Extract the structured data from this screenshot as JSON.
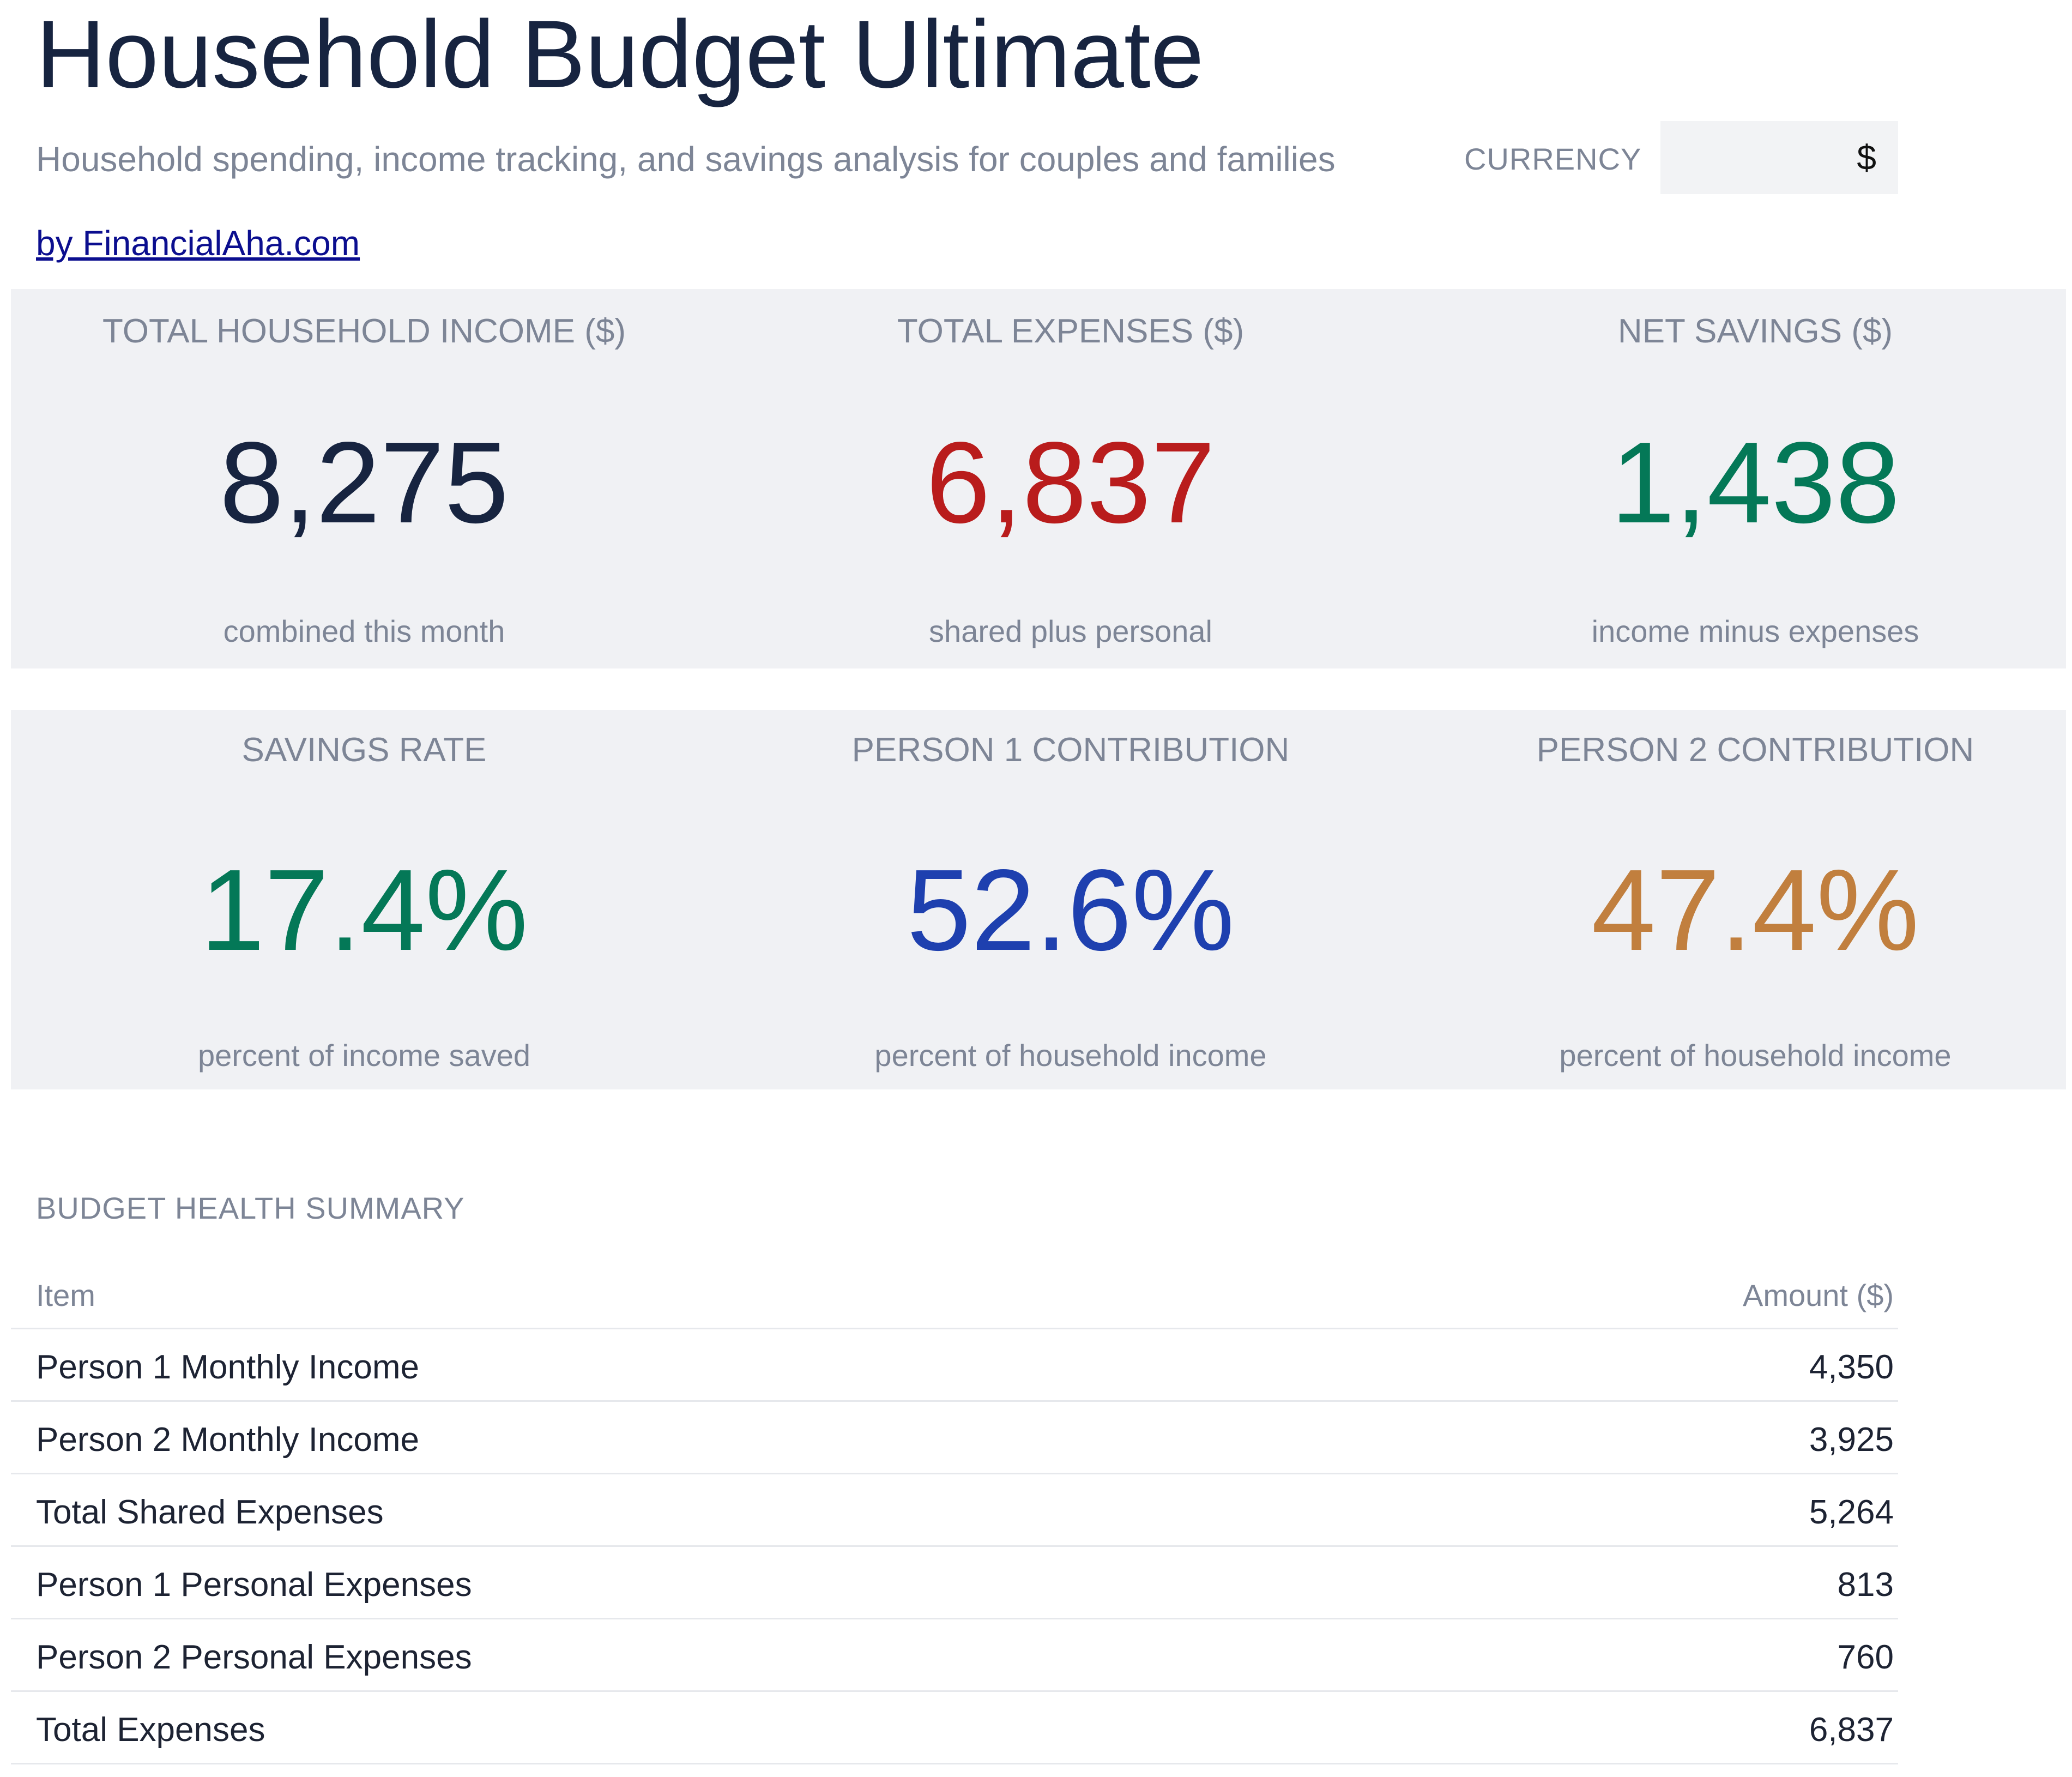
{
  "header": {
    "title": "Household Budget Ultimate",
    "subtitle": "Household spending, income tracking, and savings analysis for couples and families",
    "currency_label": "CURRENCY",
    "currency_value": "$",
    "link_text": "by FinancialAha.com"
  },
  "kpis_row1": [
    {
      "label": "TOTAL HOUSEHOLD INCOME ($)",
      "value": "8,275",
      "sub": "combined this month",
      "color": "#172440"
    },
    {
      "label": "TOTAL EXPENSES ($)",
      "value": "6,837",
      "sub": "shared plus personal",
      "color": "#b91c1c"
    },
    {
      "label": "NET SAVINGS ($)",
      "value": "1,438",
      "sub": "income minus expenses",
      "color": "#047857"
    }
  ],
  "kpis_row2": [
    {
      "label": "SAVINGS RATE",
      "value": "17.4%",
      "sub": "percent of income saved",
      "color": "#047857"
    },
    {
      "label": "PERSON 1 CONTRIBUTION",
      "value": "52.6%",
      "sub": "percent of household income",
      "color": "#1e40af"
    },
    {
      "label": "PERSON 2 CONTRIBUTION",
      "value": "47.4%",
      "sub": "percent of household income",
      "color": "#c17f3e"
    }
  ],
  "summary": {
    "title": "BUDGET HEALTH SUMMARY",
    "columns": {
      "item": "Item",
      "amount": "Amount ($)"
    },
    "rows": [
      {
        "item": "Person 1 Monthly Income",
        "amount": "4,350"
      },
      {
        "item": "Person 2 Monthly Income",
        "amount": "3,925"
      },
      {
        "item": "Total Shared Expenses",
        "amount": "5,264"
      },
      {
        "item": "Person 1 Personal Expenses",
        "amount": "813"
      },
      {
        "item": "Person 2 Personal Expenses",
        "amount": "760"
      },
      {
        "item": "Total Expenses",
        "amount": "6,837"
      }
    ]
  }
}
